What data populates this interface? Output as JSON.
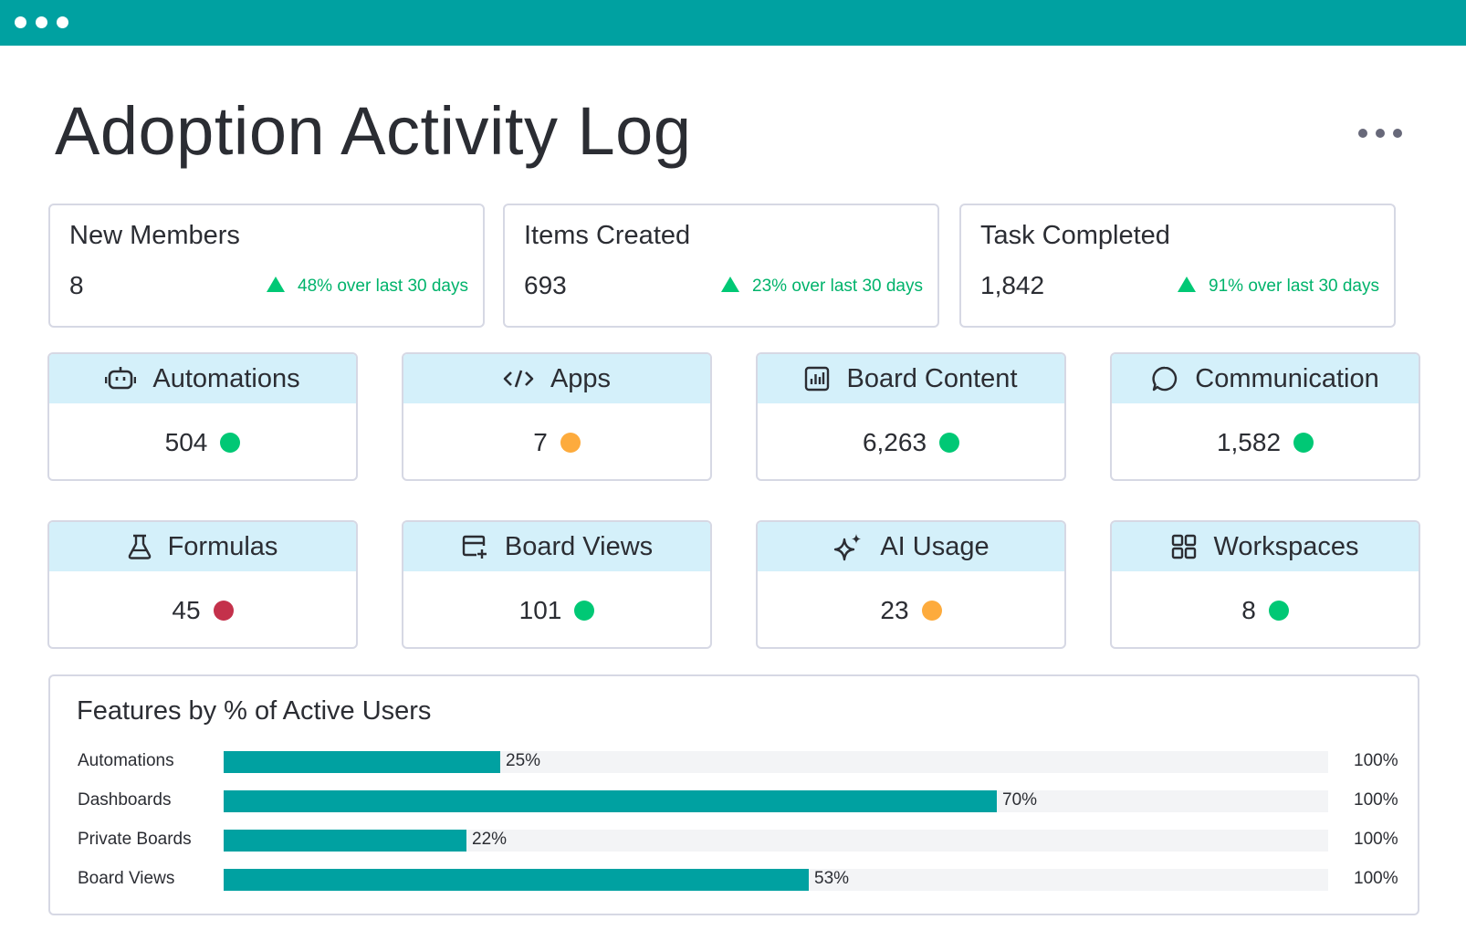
{
  "window": {
    "controls": [
      "dot",
      "dot",
      "dot"
    ]
  },
  "page": {
    "title": "Adoption Activity Log"
  },
  "stats": [
    {
      "label": "New Members",
      "value": "8",
      "trend": "48% over last 30 days"
    },
    {
      "label": "Items Created",
      "value": "693",
      "trend": "23% over last 30 days"
    },
    {
      "label": "Task Completed",
      "value": "1,842",
      "trend": "91% over last 30 days"
    }
  ],
  "metrics": [
    {
      "label": "Automations",
      "icon": "robot-icon",
      "value": "504",
      "status": "green"
    },
    {
      "label": "Apps",
      "icon": "code-icon",
      "value": "7",
      "status": "orange"
    },
    {
      "label": "Board Content",
      "icon": "bar-chart-icon",
      "value": "6,263",
      "status": "green"
    },
    {
      "label": "Communication",
      "icon": "chat-bubble-icon",
      "value": "1,582",
      "status": "green"
    },
    {
      "label": "Formulas",
      "icon": "flask-icon",
      "value": "45",
      "status": "red"
    },
    {
      "label": "Board Views",
      "icon": "board-add-icon",
      "value": "101",
      "status": "green"
    },
    {
      "label": "AI Usage",
      "icon": "sparkle-icon",
      "value": "23",
      "status": "orange"
    },
    {
      "label": "Workspaces",
      "icon": "grid-icon",
      "value": "8",
      "status": "green"
    }
  ],
  "colors": {
    "accent": "#00a1a1",
    "trend": "#00c875",
    "status_green": "#00c875",
    "status_orange": "#fdab3d",
    "status_red": "#c4314b",
    "card_header": "#d4f0fa"
  },
  "chart_data": {
    "type": "bar",
    "title": "Features by % of Active Users",
    "categories": [
      "Automations",
      "Dashboards",
      "Private Boards",
      "Board Views"
    ],
    "values": [
      25,
      70,
      22,
      53
    ],
    "value_labels": [
      "25%",
      "70%",
      "22%",
      "53%"
    ],
    "max_label": "100%",
    "xlim": [
      0,
      100
    ],
    "orientation": "horizontal",
    "grid": false
  }
}
